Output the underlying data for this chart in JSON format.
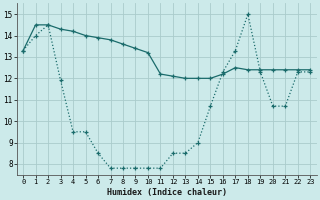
{
  "xlabel": "Humidex (Indice chaleur)",
  "bg_color": "#cceaea",
  "grid_color": "#aacccc",
  "line_color": "#1a6b6b",
  "xlim": [
    -0.5,
    23.5
  ],
  "ylim": [
    7.5,
    15.5
  ],
  "xticks": [
    0,
    1,
    2,
    3,
    4,
    5,
    6,
    7,
    8,
    9,
    10,
    11,
    12,
    13,
    14,
    15,
    16,
    17,
    18,
    19,
    20,
    21,
    22,
    23
  ],
  "yticks": [
    8,
    9,
    10,
    11,
    12,
    13,
    14,
    15
  ],
  "series1_x": [
    0,
    1,
    2,
    3,
    4,
    5,
    6,
    7,
    8,
    9,
    10,
    11,
    12,
    13,
    14,
    15,
    16,
    17,
    18,
    19,
    20,
    21,
    22,
    23
  ],
  "series1_y": [
    13.3,
    14.0,
    14.5,
    11.9,
    9.5,
    9.5,
    8.5,
    7.8,
    7.8,
    7.8,
    7.8,
    7.8,
    8.5,
    8.5,
    9.0,
    10.7,
    12.3,
    13.3,
    15.0,
    12.3,
    10.7,
    10.7,
    12.3,
    12.3
  ],
  "series2_x": [
    0,
    1,
    2,
    3,
    4,
    5,
    6,
    7,
    8,
    9,
    10,
    11,
    12,
    13,
    14,
    15,
    16,
    17,
    18,
    19,
    20,
    21,
    22,
    23
  ],
  "series2_y": [
    13.3,
    14.5,
    14.5,
    14.3,
    14.2,
    14.0,
    13.9,
    13.8,
    13.6,
    13.4,
    13.2,
    12.2,
    12.1,
    12.0,
    12.0,
    12.0,
    12.2,
    12.5,
    12.4,
    12.4,
    12.4,
    12.4,
    12.4,
    12.4
  ]
}
